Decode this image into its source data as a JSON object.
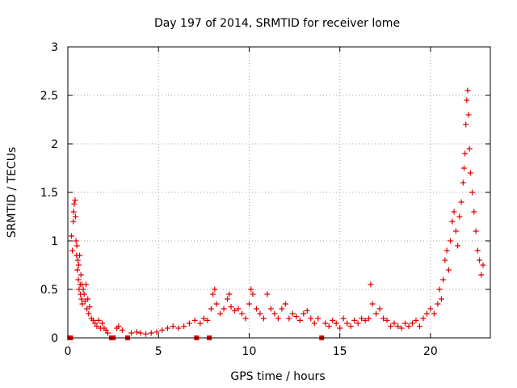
{
  "chart_data": {
    "type": "scatter",
    "title": "Day 197 of 2014, SRMTID for receiver lome",
    "xlabel": "GPS time / hours",
    "ylabel": "SRMTID / TECUs",
    "xlim": [
      0,
      23.3
    ],
    "ylim": [
      0,
      3
    ],
    "xticks": [
      0,
      5,
      10,
      15,
      20
    ],
    "yticks": [
      0,
      0.5,
      1,
      1.5,
      2,
      2.5,
      3
    ],
    "xtick_labels": [
      "0",
      "5",
      "10",
      "15",
      "20"
    ],
    "ytick_labels": [
      "0",
      "0.5",
      "1",
      "1.5",
      "2",
      "2.5",
      "3"
    ],
    "grid": true,
    "marker": "plus",
    "color": "#e00000",
    "series": [
      {
        "name": "SRMTID",
        "points": [
          [
            0.1,
            0.0
          ],
          [
            0.15,
            0.0
          ],
          [
            0.2,
            1.05
          ],
          [
            0.25,
            0.9
          ],
          [
            0.3,
            1.2
          ],
          [
            0.32,
            1.3
          ],
          [
            0.35,
            1.38
          ],
          [
            0.4,
            1.42
          ],
          [
            0.42,
            1.25
          ],
          [
            0.45,
            1.0
          ],
          [
            0.48,
            0.85
          ],
          [
            0.5,
            0.95
          ],
          [
            0.52,
            0.7
          ],
          [
            0.55,
            0.8
          ],
          [
            0.58,
            0.6
          ],
          [
            0.6,
            0.75
          ],
          [
            0.62,
            0.5
          ],
          [
            0.65,
            0.85
          ],
          [
            0.68,
            0.55
          ],
          [
            0.7,
            0.45
          ],
          [
            0.72,
            0.65
          ],
          [
            0.75,
            0.4
          ],
          [
            0.78,
            0.55
          ],
          [
            0.8,
            0.35
          ],
          [
            0.85,
            0.5
          ],
          [
            0.9,
            0.45
          ],
          [
            0.95,
            0.38
          ],
          [
            1.0,
            0.55
          ],
          [
            1.05,
            0.3
          ],
          [
            1.1,
            0.4
          ],
          [
            1.15,
            0.25
          ],
          [
            1.2,
            0.32
          ],
          [
            1.3,
            0.2
          ],
          [
            1.4,
            0.18
          ],
          [
            1.5,
            0.15
          ],
          [
            1.6,
            0.12
          ],
          [
            1.7,
            0.18
          ],
          [
            1.8,
            0.1
          ],
          [
            1.9,
            0.15
          ],
          [
            2.0,
            0.1
          ],
          [
            2.1,
            0.08
          ],
          [
            2.2,
            0.05
          ],
          [
            2.4,
            0.0
          ],
          [
            2.5,
            0.0
          ],
          [
            2.7,
            0.1
          ],
          [
            2.8,
            0.12
          ],
          [
            3.0,
            0.08
          ],
          [
            3.3,
            0.0
          ],
          [
            3.5,
            0.05
          ],
          [
            3.8,
            0.06
          ],
          [
            4.0,
            0.05
          ],
          [
            4.3,
            0.04
          ],
          [
            4.6,
            0.05
          ],
          [
            4.9,
            0.06
          ],
          [
            5.2,
            0.08
          ],
          [
            5.5,
            0.1
          ],
          [
            5.8,
            0.12
          ],
          [
            6.1,
            0.1
          ],
          [
            6.4,
            0.12
          ],
          [
            6.7,
            0.15
          ],
          [
            7.0,
            0.18
          ],
          [
            7.1,
            0.0
          ],
          [
            7.3,
            0.15
          ],
          [
            7.5,
            0.2
          ],
          [
            7.7,
            0.18
          ],
          [
            7.8,
            0.0
          ],
          [
            7.9,
            0.3
          ],
          [
            8.0,
            0.45
          ],
          [
            8.1,
            0.5
          ],
          [
            8.2,
            0.35
          ],
          [
            8.4,
            0.25
          ],
          [
            8.6,
            0.3
          ],
          [
            8.8,
            0.4
          ],
          [
            8.9,
            0.45
          ],
          [
            9.0,
            0.32
          ],
          [
            9.2,
            0.28
          ],
          [
            9.4,
            0.3
          ],
          [
            9.6,
            0.25
          ],
          [
            9.8,
            0.2
          ],
          [
            10.0,
            0.35
          ],
          [
            10.1,
            0.5
          ],
          [
            10.2,
            0.45
          ],
          [
            10.4,
            0.3
          ],
          [
            10.6,
            0.25
          ],
          [
            10.8,
            0.2
          ],
          [
            11.0,
            0.45
          ],
          [
            11.2,
            0.3
          ],
          [
            11.4,
            0.25
          ],
          [
            11.6,
            0.2
          ],
          [
            11.8,
            0.3
          ],
          [
            12.0,
            0.35
          ],
          [
            12.2,
            0.2
          ],
          [
            12.4,
            0.25
          ],
          [
            12.6,
            0.22
          ],
          [
            12.8,
            0.18
          ],
          [
            13.0,
            0.25
          ],
          [
            13.2,
            0.28
          ],
          [
            13.4,
            0.2
          ],
          [
            13.6,
            0.15
          ],
          [
            13.8,
            0.2
          ],
          [
            14.0,
            0.0
          ],
          [
            14.2,
            0.15
          ],
          [
            14.4,
            0.12
          ],
          [
            14.6,
            0.18
          ],
          [
            14.8,
            0.15
          ],
          [
            15.0,
            0.1
          ],
          [
            15.2,
            0.2
          ],
          [
            15.4,
            0.15
          ],
          [
            15.6,
            0.12
          ],
          [
            15.8,
            0.18
          ],
          [
            16.0,
            0.15
          ],
          [
            16.2,
            0.2
          ],
          [
            16.4,
            0.18
          ],
          [
            16.6,
            0.2
          ],
          [
            16.7,
            0.55
          ],
          [
            16.8,
            0.35
          ],
          [
            17.0,
            0.25
          ],
          [
            17.2,
            0.3
          ],
          [
            17.4,
            0.2
          ],
          [
            17.6,
            0.18
          ],
          [
            17.8,
            0.12
          ],
          [
            18.0,
            0.15
          ],
          [
            18.2,
            0.12
          ],
          [
            18.4,
            0.1
          ],
          [
            18.6,
            0.15
          ],
          [
            18.8,
            0.12
          ],
          [
            19.0,
            0.15
          ],
          [
            19.2,
            0.18
          ],
          [
            19.4,
            0.12
          ],
          [
            19.6,
            0.2
          ],
          [
            19.8,
            0.25
          ],
          [
            20.0,
            0.3
          ],
          [
            20.2,
            0.25
          ],
          [
            20.4,
            0.35
          ],
          [
            20.5,
            0.5
          ],
          [
            20.6,
            0.4
          ],
          [
            20.7,
            0.6
          ],
          [
            20.8,
            0.8
          ],
          [
            20.9,
            0.9
          ],
          [
            21.0,
            0.7
          ],
          [
            21.1,
            1.0
          ],
          [
            21.2,
            1.2
          ],
          [
            21.3,
            1.3
          ],
          [
            21.4,
            1.1
          ],
          [
            21.5,
            0.95
          ],
          [
            21.6,
            1.25
          ],
          [
            21.7,
            1.4
          ],
          [
            21.8,
            1.6
          ],
          [
            21.85,
            1.75
          ],
          [
            21.9,
            1.9
          ],
          [
            21.95,
            2.2
          ],
          [
            22.0,
            2.45
          ],
          [
            22.05,
            2.55
          ],
          [
            22.1,
            2.3
          ],
          [
            22.15,
            1.95
          ],
          [
            22.2,
            1.7
          ],
          [
            22.3,
            1.5
          ],
          [
            22.4,
            1.3
          ],
          [
            22.5,
            1.1
          ],
          [
            22.6,
            0.9
          ],
          [
            22.7,
            0.8
          ],
          [
            22.8,
            0.65
          ],
          [
            22.9,
            0.75
          ]
        ]
      }
    ]
  }
}
